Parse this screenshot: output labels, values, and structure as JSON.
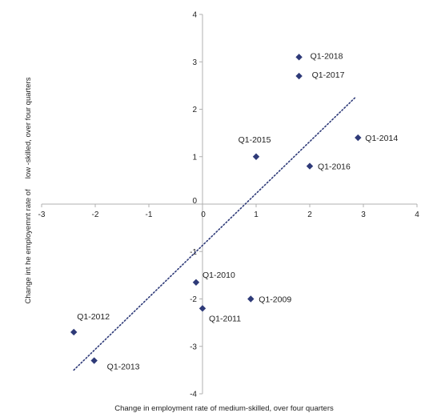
{
  "chart_data": {
    "type": "scatter",
    "title": "",
    "xlabel": "Change in employment rate of medium-skilled, over four quarters",
    "ylabel": "Change int he employemnt rate of     low -skilled, over four quarters",
    "xlim": [
      -3,
      4
    ],
    "ylim": [
      -4,
      4
    ],
    "x_ticks": [
      "-3",
      "-2",
      "-1",
      "0",
      "1",
      "2",
      "3",
      "4"
    ],
    "y_ticks": [
      "-4",
      "-3",
      "-2",
      "-1",
      "0",
      "1",
      "2",
      "3",
      "4"
    ],
    "grid": false,
    "legend": "none",
    "marker_color": "#2e3a78",
    "trendline_color": "#2e3a78",
    "trendline": {
      "style": "dotted",
      "x": [
        -2.4,
        2.85
      ],
      "y": [
        -3.5,
        2.25
      ]
    },
    "points": [
      {
        "label": "Q1-2009",
        "x": 0.9,
        "y": -2.0
      },
      {
        "label": "Q1-2010",
        "x": -0.12,
        "y": -1.65
      },
      {
        "label": "Q1-2011",
        "x": 0.0,
        "y": -2.2
      },
      {
        "label": "Q1-2012",
        "x": -2.4,
        "y": -2.7
      },
      {
        "label": "Q1-2013",
        "x": -2.02,
        "y": -3.3
      },
      {
        "label": "Q1-2014",
        "x": 2.9,
        "y": 1.4
      },
      {
        "label": "Q1-2015",
        "x": 1.0,
        "y": 1.0
      },
      {
        "label": "Q1-2016",
        "x": 2.0,
        "y": 0.8
      },
      {
        "label": "Q1-2017",
        "x": 1.8,
        "y": 2.7
      },
      {
        "label": "Q1-2018",
        "x": 1.8,
        "y": 3.1
      }
    ]
  }
}
